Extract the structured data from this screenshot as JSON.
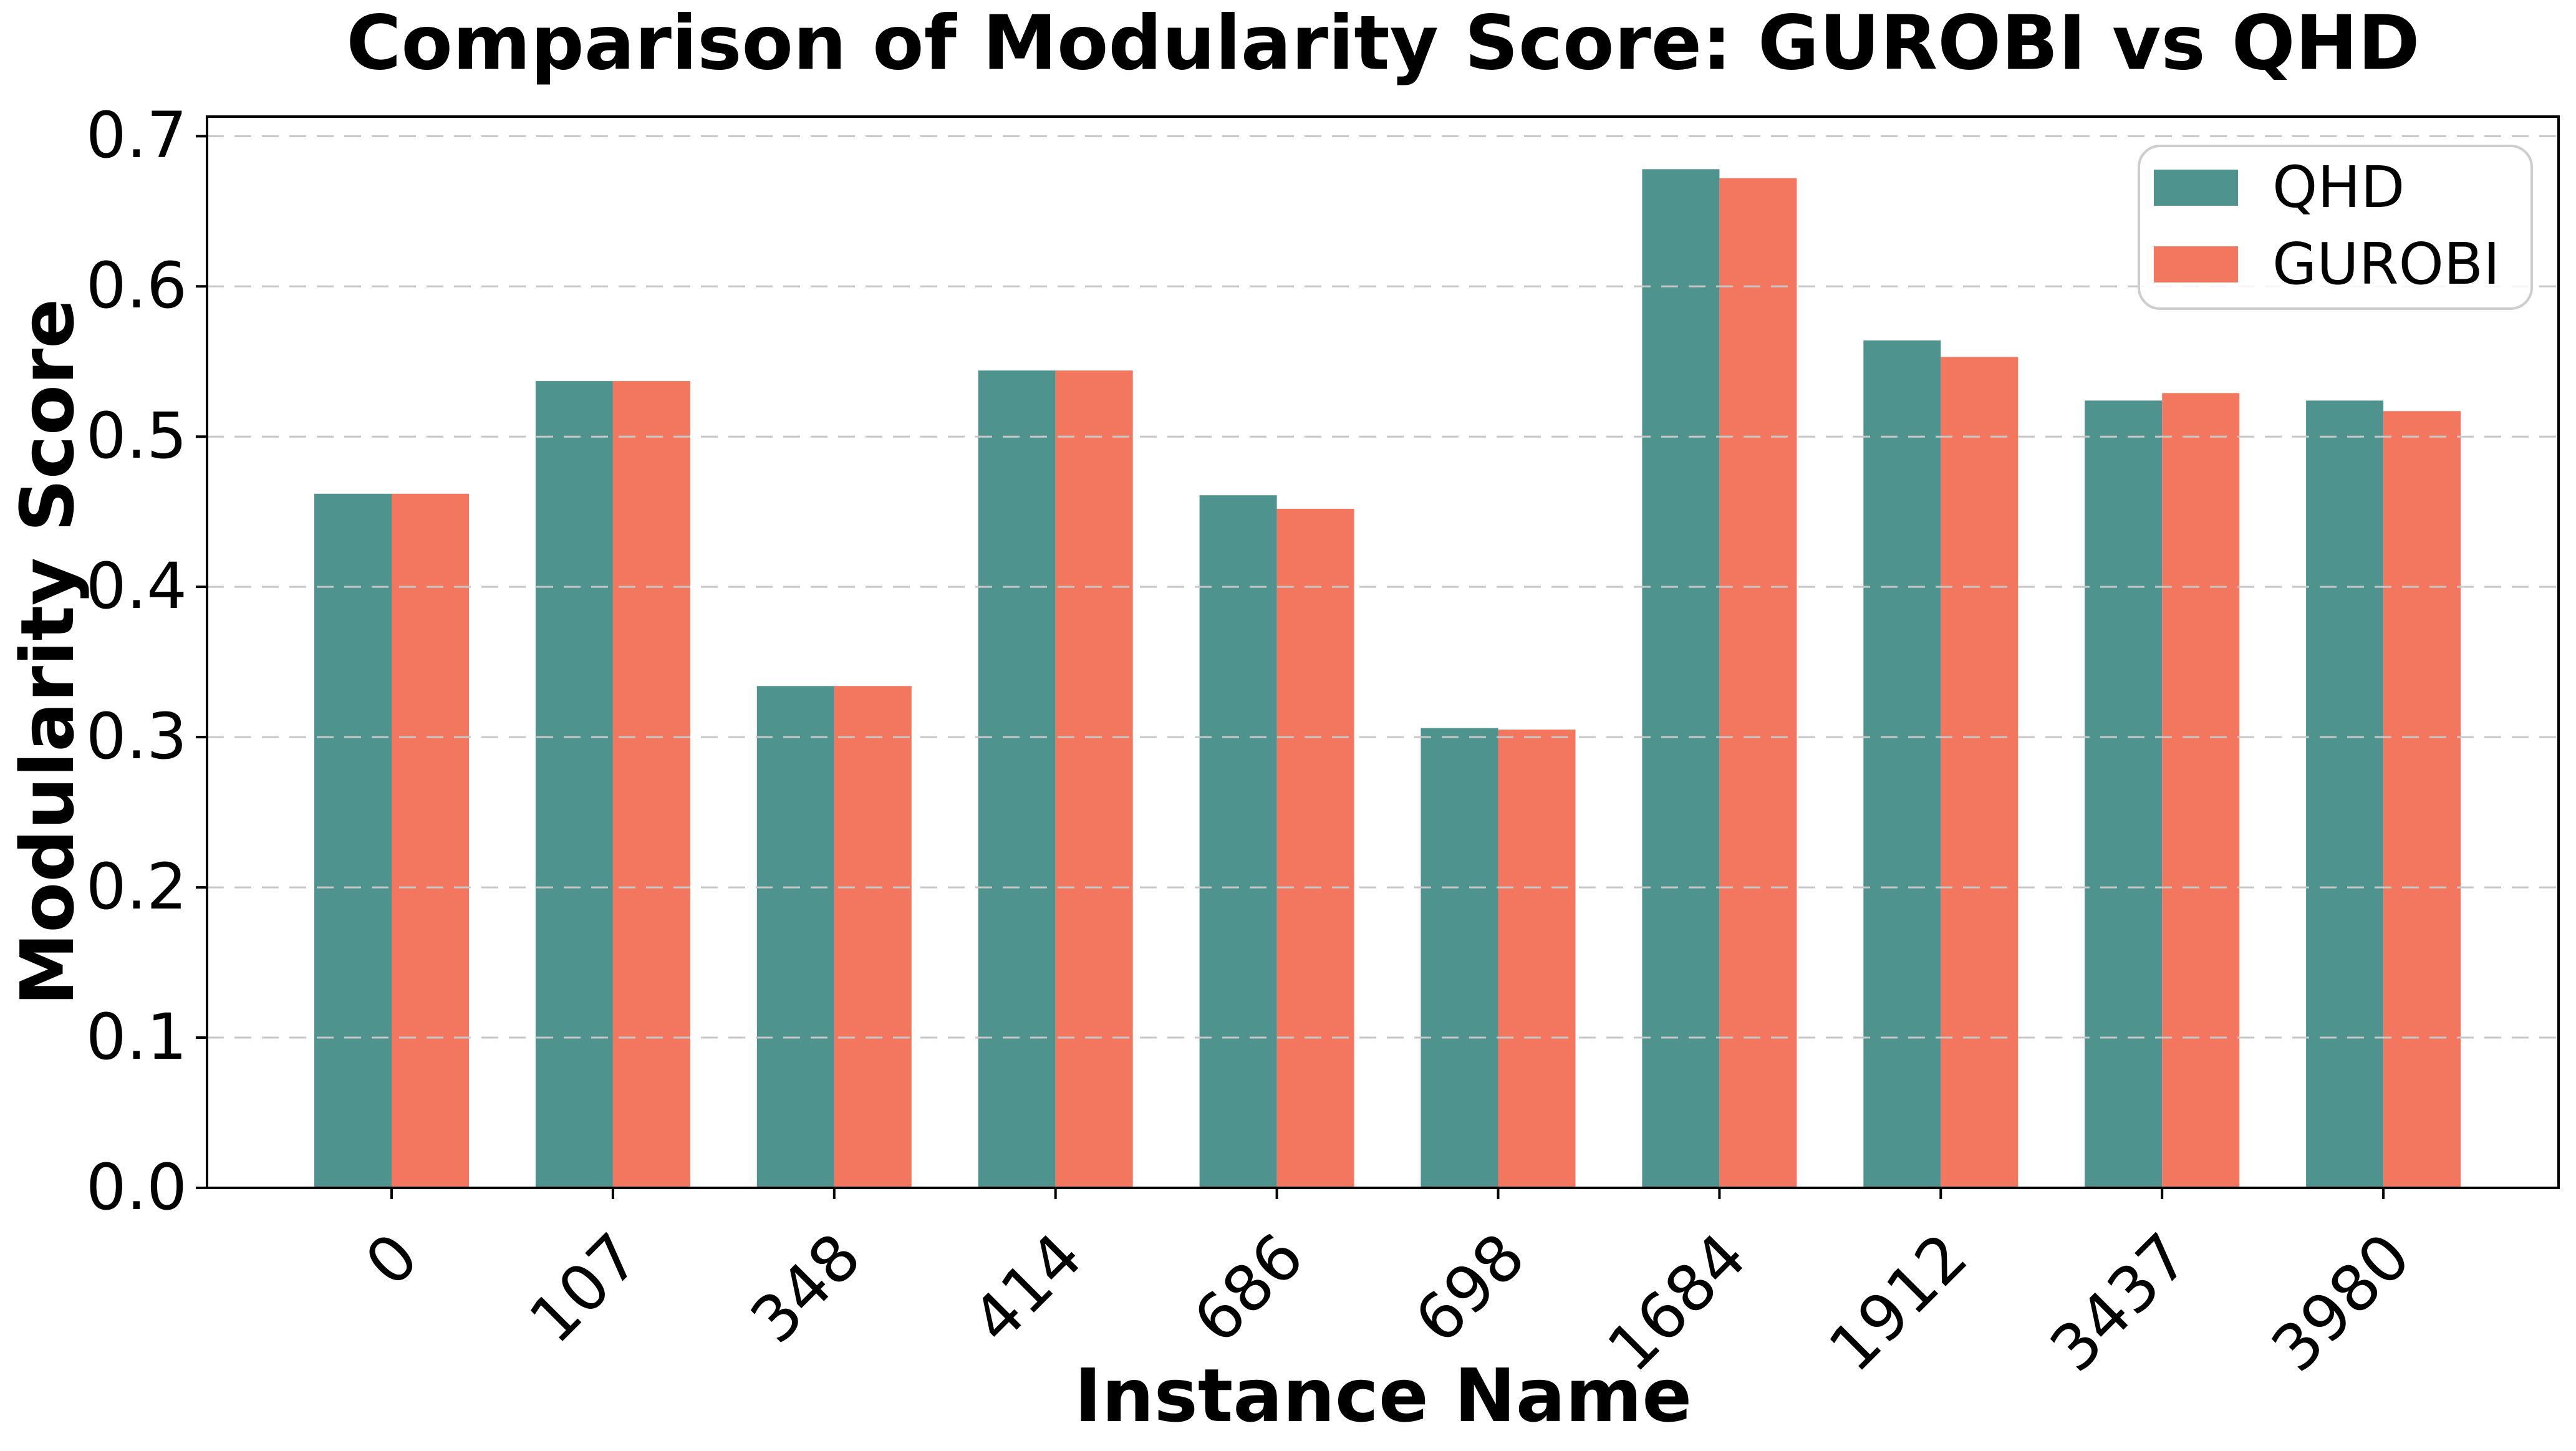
{
  "title": "Comparison of Modularity Score: GUROBI vs QHD",
  "legend": {
    "items": [
      {
        "label": "QHD",
        "color": "#4F938E"
      },
      {
        "label": "GUROBI",
        "color": "#F3775E"
      }
    ]
  },
  "chart_data": {
    "type": "bar",
    "title": "Comparison of Modularity Score: GUROBI vs QHD",
    "xlabel": "Instance Name",
    "ylabel": "Modularity Score",
    "categories": [
      "0",
      "107",
      "348",
      "414",
      "686",
      "698",
      "1684",
      "1912",
      "3437",
      "3980"
    ],
    "series": [
      {
        "name": "QHD",
        "color": "#4F938E",
        "values": [
          0.462,
          0.537,
          0.334,
          0.544,
          0.461,
          0.306,
          0.678,
          0.564,
          0.524,
          0.524
        ]
      },
      {
        "name": "GUROBI",
        "color": "#F3775E",
        "values": [
          0.462,
          0.537,
          0.334,
          0.544,
          0.452,
          0.305,
          0.672,
          0.553,
          0.529,
          0.517
        ]
      }
    ],
    "ylim": [
      0,
      0.713
    ],
    "yticks": [
      0.0,
      0.1,
      0.2,
      0.3,
      0.4,
      0.5,
      0.6,
      0.7
    ],
    "ytick_labels": [
      "0.0",
      "0.1",
      "0.2",
      "0.3",
      "0.4",
      "0.5",
      "0.6",
      "0.7"
    ],
    "grid": "horizontal-dashed",
    "grid_color": "#c7c7c7",
    "legend_position": "upper right"
  }
}
